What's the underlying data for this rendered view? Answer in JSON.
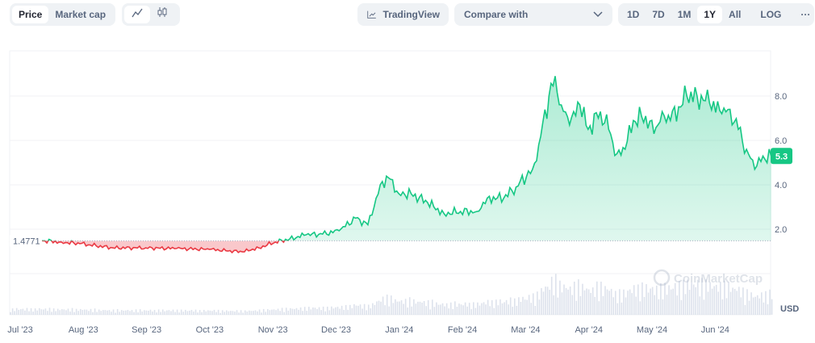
{
  "toolbar": {
    "price": "Price",
    "market_cap": "Market cap",
    "line_icon": "line-chart-icon",
    "candle_icon": "candlestick-icon",
    "tradingview": "TradingView",
    "compare": "Compare with",
    "ranges": [
      "1D",
      "7D",
      "1M",
      "1Y",
      "All"
    ],
    "active_range": "1Y",
    "log": "LOG",
    "more": "···"
  },
  "chart_data": {
    "type": "line",
    "title": "",
    "xlabel": "",
    "ylabel": "USD",
    "currency": "USD",
    "baseline": 1.4771,
    "baseline_label": "1.4771",
    "current_price": 5.3,
    "current_label": "5.3",
    "ylim": [
      0,
      9.2
    ],
    "yticks": [
      "2.0",
      "4.0",
      "6.0",
      "8.0"
    ],
    "ytick_values": [
      2,
      4,
      6,
      8
    ],
    "xticks": [
      "Jul '23",
      "Aug '23",
      "Sep '23",
      "Oct '23",
      "Nov '23",
      "Dec '23",
      "Jan '24",
      "Feb '24",
      "Mar '24",
      "Apr '24",
      "May '24",
      "Jun '24"
    ],
    "x_unit": "days since Jul 1 2023",
    "x": [
      -5,
      10,
      20,
      29,
      45,
      61,
      76,
      92,
      108,
      116,
      124,
      131,
      139,
      147,
      155,
      163,
      169,
      173,
      176,
      180,
      184,
      190,
      198,
      206,
      214,
      222,
      227,
      235,
      241,
      249,
      252,
      257,
      260,
      263,
      267,
      272,
      276,
      282,
      286,
      290,
      294,
      298,
      304,
      308,
      312,
      316,
      324,
      329,
      335,
      341,
      345,
      349,
      353,
      357,
      361,
      365
    ],
    "values": [
      1.45,
      1.49,
      1.42,
      1.35,
      1.16,
      1.16,
      1.13,
      1.09,
      0.98,
      1.16,
      1.42,
      1.56,
      1.75,
      1.78,
      1.93,
      2.5,
      2.2,
      3.4,
      4.15,
      4.25,
      3.6,
      3.6,
      3.2,
      2.7,
      2.8,
      2.8,
      3.4,
      3.4,
      3.9,
      4.7,
      5.8,
      8.0,
      8.9,
      7.6,
      6.7,
      7.6,
      6.5,
      7.3,
      6.5,
      5.4,
      5.6,
      6.9,
      7.1,
      6.3,
      7.3,
      6.9,
      8.0,
      8.0,
      7.7,
      7.2,
      7.4,
      6.5,
      5.6,
      4.7,
      5.3,
      5.3
    ],
    "colors": {
      "up": "#16c784",
      "down": "#ea3943"
    },
    "watermark": "CoinMarketCap"
  }
}
